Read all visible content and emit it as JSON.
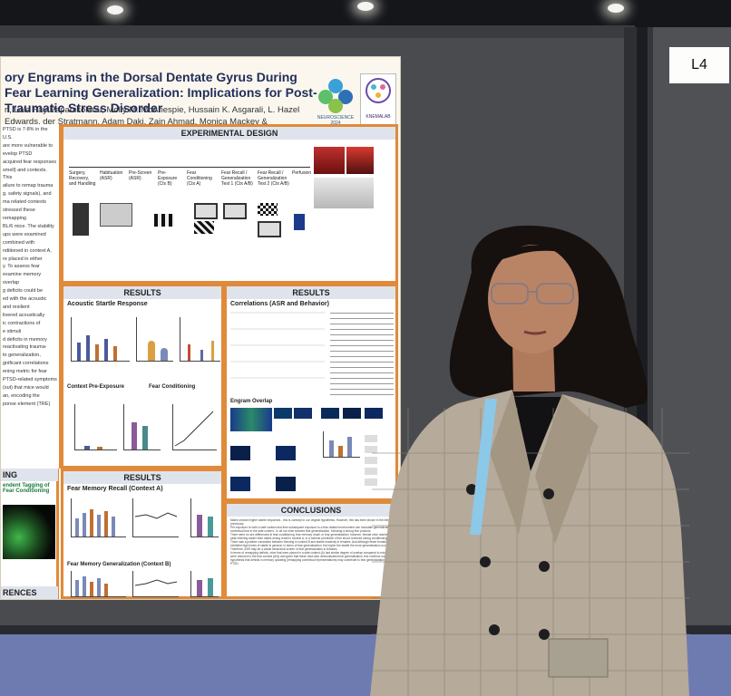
{
  "booth": {
    "label": "L4"
  },
  "poster": {
    "title": "ory Engrams in the Dorsal Dentate Gyrus During Fear Learning Generalization: Implications for Post-Traumatic Stress Disorder",
    "authors": "ri, Lola Fay Papanikolaou, Molly M. McAnespie, Hussain K. Asgarali, L. Hazel Edwards, der Stratmann, Adam Daki, Zain Ahmad, Monica Mackey & Stephanie L. Grella",
    "logos": {
      "conference_caption": "NEUROSCIENCE 2024",
      "lab_caption": "KNEMALAB"
    },
    "panels": {
      "experimental_design": "EXPERIMENTAL DESIGN",
      "results_1": "RESULTS",
      "results_2": "RESULTS",
      "results_3": "RESULTS",
      "conclusions": "CONCLUSIONS",
      "left_1": "ING",
      "left_2": "RENCES"
    },
    "subheadings": {
      "acoustic": "Acoustic Startle Response",
      "context_pre": "Context Pre-Exposure",
      "fear_cond": "Fear Conditioning",
      "correlations": "Correlations (ASR and Behavior)",
      "engram": "Engram Overlap",
      "recall": "Fear Memory Recall (Context A)",
      "generalization": "Fear Memory Generalization (Context B)",
      "tagging": "endent Tagging of Fear Conditioning"
    },
    "design_steps": [
      "Surgery, Recovery, and Handling",
      "Habituation (ASR)",
      "Pre-Screen (ASR)",
      "Pre-Exposure (Ctx B)",
      "Fear Conditioning (Ctx A)",
      "Fear Recall / Generalization Test 1 (Ctx A/B)",
      "Fear Recall / Generalization Test 2 (Ctx A/B)",
      "Perfusion"
    ],
    "left_text": [
      "PTSD is 7-8% in the U.S.",
      "are more vulnerable to",
      "evelop PTSD",
      "acquired fear responses",
      "smell) and contexts. This",
      "ailure to remap trauma",
      "g. safety signals), and",
      "ma related contexts",
      "stressed these remapping",
      "BL/6 mice. The stability",
      "ups were examined",
      "combined with",
      "nditioned in context A,",
      "re placed in either",
      "y. To assess fear",
      "examine memory overlap",
      "g deficits could be",
      "ed with the acoustic",
      "and resilient",
      "livered acoustically",
      "ic contractions of",
      "e stimuli",
      "d deficits in memory",
      "reactivating trauma-",
      "to generalization,",
      "gnificant correlations",
      "ening metric for fear",
      "PTSD-related symptoms",
      "(sut) that mice would",
      "an, encoding the",
      "ponse element (TRE)"
    ],
    "conclusions_text": [
      "Males showed higher startle responses - this is contrary to our original hypothesis. However, this has been shown in the literature previously.",
      "Pre-exposure to both a safe context and then subsequent exposure to a fear-related environment can modulate generalization of contextual fear in the safe context - in all our mice showed fear generalization, following a strong fear protocol.",
      "There were no sex differences in fear conditioning, fear memory recall, or fear generalization; however, female mice reached peak freezing earlier than males during recall in context A, in a manner predictive of the shock received during conditioning.",
      "There was a positive correlation between freezing in context B and startle reactivity in females. And although fewer female mice exhibited high levels of startle in general, in terms of fear generalization, the higher the startle the more generalization occurred. Therefore, ASR may be a viable behavioral screen of fear generalization in females.",
      "In terms of remapping deficits, mice that were placed in a safe context (A) had similar degree of overlap compared to mice that were returned to the fear context (A/A) and given that these mice also demonstrated fear generalization, this confirms our hypothesis that deficits in memory updating (remapping contextual representations) may contribute to fear generalization in PTSD."
    ]
  }
}
